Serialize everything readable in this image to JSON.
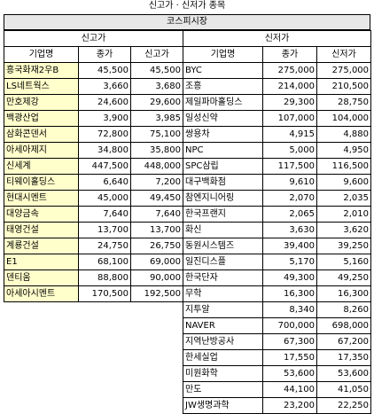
{
  "title": "신고가 · 신저가 종목",
  "market": "코스피시장",
  "high": {
    "label": "신고가",
    "columns": [
      "기업명",
      "종가",
      "신고가"
    ],
    "rows": [
      [
        "흥국화재2우B",
        "45,500",
        "45,500"
      ],
      [
        "LS네트웍스",
        "3,660",
        "3,680"
      ],
      [
        "만호제강",
        "24,600",
        "29,600"
      ],
      [
        "백광산업",
        "3,900",
        "3,985"
      ],
      [
        "삼화콘덴서",
        "72,800",
        "75,100"
      ],
      [
        "아세아제지",
        "34,800",
        "35,800"
      ],
      [
        "신세계",
        "447,500",
        "448,000"
      ],
      [
        "티웨이홀딩스",
        "6,640",
        "7,200"
      ],
      [
        "현대시멘트",
        "45,000",
        "49,450"
      ],
      [
        "대양금속",
        "7,640",
        "7,640"
      ],
      [
        "태영건설",
        "13,700",
        "13,700"
      ],
      [
        "계룡건설",
        "24,750",
        "26,750"
      ],
      [
        "E1",
        "68,100",
        "69,000"
      ],
      [
        "덴티움",
        "88,800",
        "90,000"
      ],
      [
        "아세아시멘트",
        "170,500",
        "192,500"
      ]
    ]
  },
  "low": {
    "label": "신저가",
    "columns": [
      "기업명",
      "종가",
      "신저가"
    ],
    "rows": [
      [
        "BYC",
        "275,000",
        "275,000"
      ],
      [
        "조흥",
        "214,000",
        "210,500"
      ],
      [
        "제일파마홀딩스",
        "29,300",
        "28,750"
      ],
      [
        "일성신약",
        "107,000",
        "104,000"
      ],
      [
        "쌍용차",
        "4,915",
        "4,880"
      ],
      [
        "NPC",
        "5,000",
        "4,950"
      ],
      [
        "SPC삼립",
        "117,500",
        "116,500"
      ],
      [
        "대구백화점",
        "9,610",
        "9,600"
      ],
      [
        "참엔지니어링",
        "2,070",
        "2,035"
      ],
      [
        "한국프랜지",
        "2,065",
        "2,010"
      ],
      [
        "화신",
        "3,630",
        "3,620"
      ],
      [
        "동원시스템즈",
        "39,400",
        "39,250"
      ],
      [
        "일진디스플",
        "5,170",
        "5,160"
      ],
      [
        "한국단자",
        "49,300",
        "49,250"
      ],
      [
        "무학",
        "16,300",
        "16,300"
      ],
      [
        "지투알",
        "8,340",
        "8,260"
      ],
      [
        "NAVER",
        "700,000",
        "698,000"
      ],
      [
        "지역난방공사",
        "67,300",
        "67,200"
      ],
      [
        "한세실업",
        "17,550",
        "17,350"
      ],
      [
        "미원화학",
        "53,600",
        "53,600"
      ],
      [
        "만도",
        "44,100",
        "41,050"
      ],
      [
        "JW생명과학",
        "23,200",
        "22,250"
      ]
    ]
  }
}
